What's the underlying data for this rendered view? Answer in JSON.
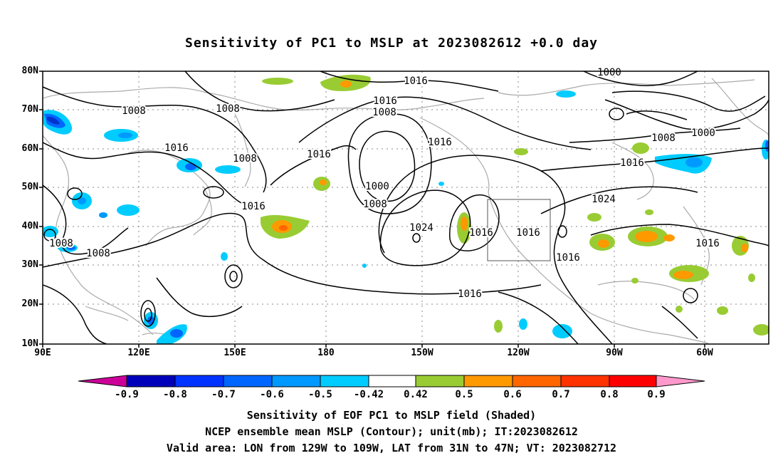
{
  "title": "Sensitivity of PC1 to MSLP at 2023082612 +0.0 day",
  "latitude_labels": [
    "80N",
    "70N",
    "60N",
    "50N",
    "40N",
    "30N",
    "20N",
    "10N"
  ],
  "longitude_labels": [
    "90E",
    "120E",
    "150E",
    "180",
    "150W",
    "120W",
    "90W",
    "60W"
  ],
  "contour_labels": [
    {
      "id": "c1",
      "text": "1016"
    },
    {
      "id": "c2",
      "text": "1016"
    },
    {
      "id": "c3",
      "text": "1008"
    },
    {
      "id": "c4",
      "text": "1008"
    },
    {
      "id": "c5",
      "text": "1008"
    },
    {
      "id": "c6",
      "text": "1016"
    },
    {
      "id": "c7",
      "text": "1008"
    },
    {
      "id": "c8",
      "text": "1016"
    },
    {
      "id": "c9",
      "text": "1016"
    },
    {
      "id": "c10",
      "text": "1000"
    },
    {
      "id": "c11",
      "text": "1008"
    },
    {
      "id": "c12",
      "text": "1016"
    },
    {
      "id": "c13",
      "text": "1024"
    },
    {
      "id": "c14",
      "text": "1016"
    },
    {
      "id": "c15",
      "text": "1016"
    },
    {
      "id": "c16",
      "text": "1016"
    },
    {
      "id": "c17",
      "text": "1016"
    },
    {
      "id": "c18",
      "text": "1024"
    },
    {
      "id": "c19",
      "text": "1016"
    },
    {
      "id": "c20",
      "text": "1008"
    },
    {
      "id": "c21",
      "text": "1000"
    },
    {
      "id": "c22",
      "text": "1000"
    },
    {
      "id": "c23",
      "text": "1008"
    },
    {
      "id": "c24",
      "text": "1008"
    },
    {
      "id": "c25",
      "text": "1016"
    }
  ],
  "colorbar": {
    "labels": [
      "-0.9",
      "-0.8",
      "-0.7",
      "-0.6",
      "-0.5",
      "-0.42",
      "0.42",
      "0.5",
      "0.6",
      "0.7",
      "0.8",
      "0.9"
    ],
    "colors": [
      "#cc0099",
      "#0000bb",
      "#0033ff",
      "#0066ff",
      "#0099ff",
      "#00ccff",
      "#ffffff",
      "#99cc33",
      "#ff9900",
      "#ff6600",
      "#ff3300",
      "#ff0000",
      "#ff99cc"
    ]
  },
  "captions": [
    "Sensitivity of EOF PC1 to MSLP field (Shaded)",
    "NCEP ensemble mean MSLP (Contour); unit(mb); IT:2023082612",
    "Valid area: LON from 129W to 109W, LAT from 31N to 47N; VT: 2023082712"
  ]
}
